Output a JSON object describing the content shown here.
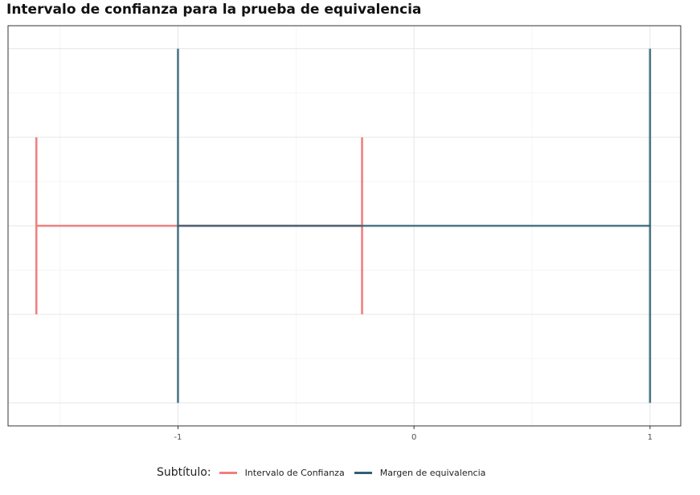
{
  "chart_data": {
    "type": "line",
    "title": "Intervalo de confianza para la prueba de equivalencia",
    "xlabel": "",
    "ylabel": "",
    "xlim": [
      -1.72,
      1.13
    ],
    "ylim": [
      -1.13,
      1.13
    ],
    "x_ticks": [
      -1,
      0,
      1
    ],
    "x_tick_labels": [
      "-1",
      "0",
      "1"
    ],
    "x_minor_gridlines": [
      -1.5,
      -0.5,
      0.5
    ],
    "y_gridlines": [
      -1,
      -0.5,
      0,
      0.5,
      1
    ],
    "y_minor_gridlines": [
      -0.75,
      -0.25,
      0.25,
      0.75
    ],
    "grid": true,
    "legend": {
      "title": "Subtítulo:",
      "position": "bottom",
      "entries": [
        {
          "name": "Intervalo de Confianza",
          "color": "#f08080"
        },
        {
          "name": "Margen de equivalencia",
          "color": "#2f5f73"
        }
      ]
    },
    "series": [
      {
        "name": "Intervalo de Confianza",
        "color": "#f08080",
        "lower": -1.6,
        "upper": -0.22,
        "y_center": 0,
        "cap_half_height": 0.5
      },
      {
        "name": "Margen de equivalencia",
        "color": "#2f5f73",
        "lower": -1,
        "upper": 1,
        "y_center": 0,
        "cap_half_height": 1
      }
    ]
  }
}
